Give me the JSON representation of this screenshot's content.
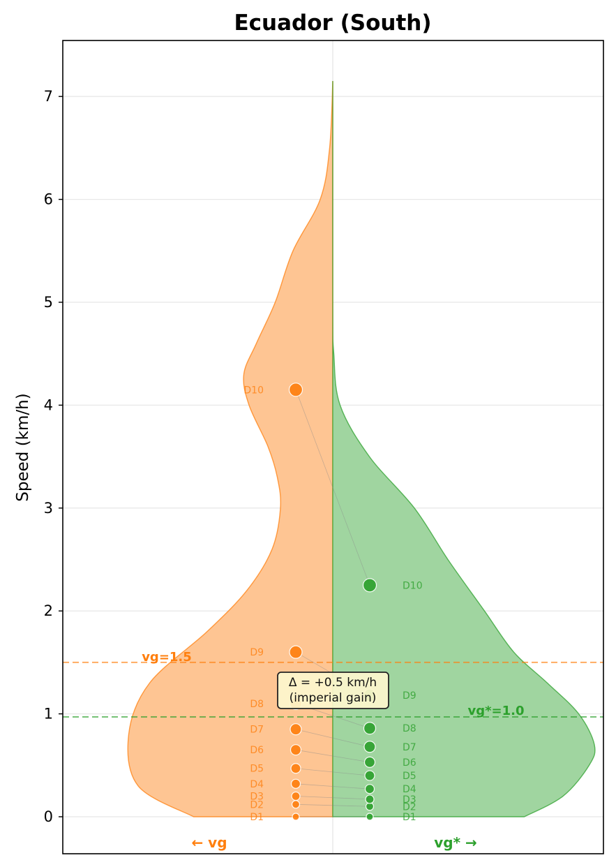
{
  "chart_data": {
    "type": "split-violin",
    "title": "Ecuador (South)",
    "ylabel": "Speed (km/h)",
    "ylim": [
      -0.35,
      7.5
    ],
    "yticks": [
      0,
      1,
      2,
      3,
      4,
      5,
      6,
      7
    ],
    "grid": true,
    "deciles": [
      "D1",
      "D2",
      "D3",
      "D4",
      "D5",
      "D6",
      "D7",
      "D8",
      "D9",
      "D10"
    ],
    "series": [
      {
        "name": "vg",
        "side": "left",
        "axis_label": "← vg",
        "color": "#ff7f0e",
        "fill": "#fec593",
        "values": [
          0.0,
          0.12,
          0.2,
          0.32,
          0.47,
          0.65,
          0.85,
          1.1,
          1.6,
          4.15
        ],
        "reference": {
          "value": 1.5,
          "label": "vg=1.5"
        },
        "density": [
          [
            0,
            1.33
          ],
          [
            0.3,
            1.86
          ],
          [
            0.8,
            1.95
          ],
          [
            1.3,
            1.75
          ],
          [
            1.8,
            1.2
          ],
          [
            2.2,
            0.82
          ],
          [
            2.6,
            0.58
          ],
          [
            3.0,
            0.5
          ],
          [
            3.3,
            0.53
          ],
          [
            3.6,
            0.62
          ],
          [
            4.0,
            0.8
          ],
          [
            4.3,
            0.85
          ],
          [
            4.6,
            0.73
          ],
          [
            5.0,
            0.55
          ],
          [
            5.5,
            0.38
          ],
          [
            6.0,
            0.12
          ],
          [
            6.5,
            0.03
          ],
          [
            7.15,
            0.0
          ]
        ]
      },
      {
        "name": "vg*",
        "side": "right",
        "axis_label": "vg* →",
        "color": "#2ca02c",
        "fill": "#a0d5a0",
        "values": [
          0.0,
          0.1,
          0.17,
          0.27,
          0.4,
          0.53,
          0.68,
          0.86,
          1.18,
          2.25
        ],
        "reference": {
          "value": 0.97,
          "label": "vg*=1.0"
        },
        "density": [
          [
            0,
            1.83
          ],
          [
            0.2,
            2.2
          ],
          [
            0.5,
            2.45
          ],
          [
            0.7,
            2.5
          ],
          [
            1.0,
            2.35
          ],
          [
            1.3,
            2.05
          ],
          [
            1.6,
            1.73
          ],
          [
            2.0,
            1.45
          ],
          [
            2.5,
            1.1
          ],
          [
            3.0,
            0.78
          ],
          [
            3.5,
            0.35
          ],
          [
            4.0,
            0.07
          ],
          [
            4.5,
            0.01
          ],
          [
            5.0,
            0.0
          ],
          [
            7.15,
            0.0
          ]
        ]
      }
    ],
    "annotation": {
      "text_line1": "Δ = +0.5 km/h",
      "text_line2": "(imperial gain)"
    }
  }
}
